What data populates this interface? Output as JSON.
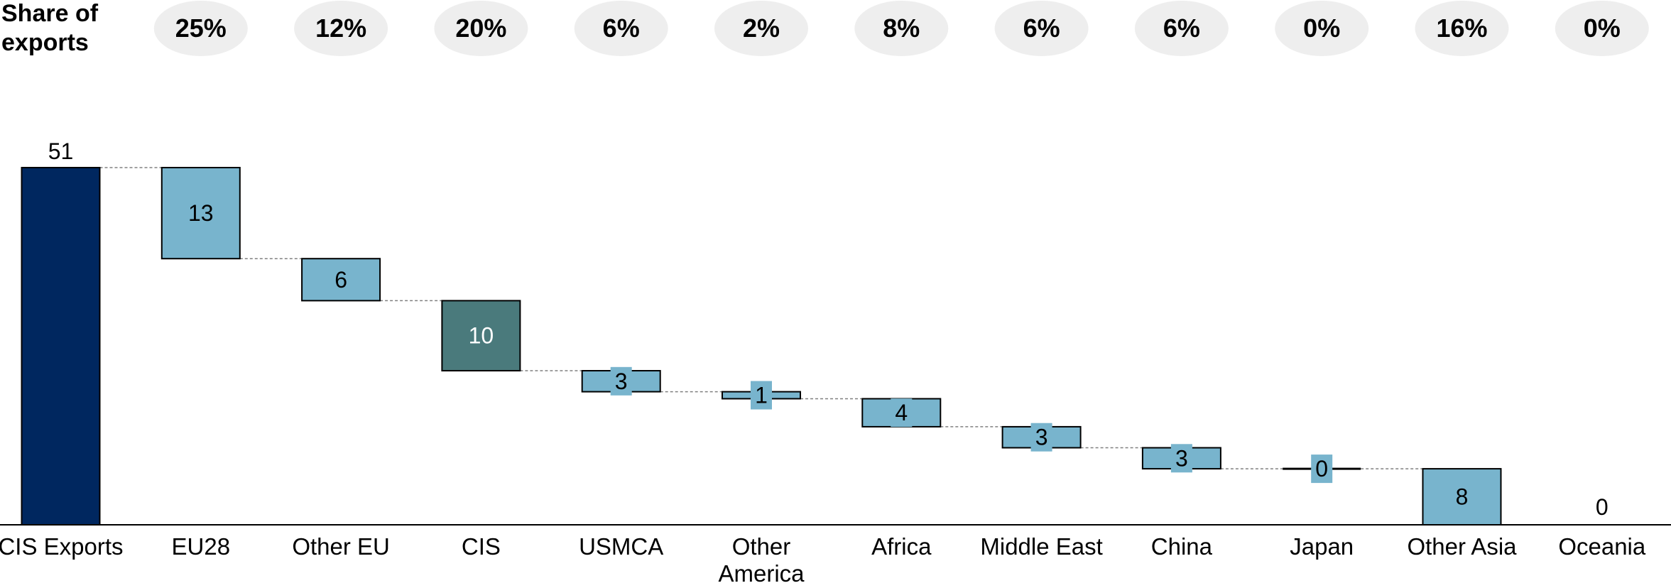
{
  "chart_data": {
    "type": "bar",
    "subtype": "waterfall",
    "share_header": [
      "Share of",
      "exports"
    ],
    "categories": [
      "CIS Exports",
      "EU28",
      "Other EU",
      "CIS",
      "USMCA",
      "Other America",
      "Africa",
      "Middle East",
      "China",
      "Japan",
      "Other Asia",
      "Oceania"
    ],
    "values": [
      51,
      13,
      6,
      10,
      3,
      1,
      4,
      3,
      3,
      0,
      8,
      0
    ],
    "value_labels": [
      "51",
      "13",
      "6",
      "10",
      "3",
      "1",
      "4",
      "3",
      "3",
      "0",
      "8",
      "0"
    ],
    "shares": [
      "25%",
      "12%",
      "20%",
      "6%",
      "2%",
      "8%",
      "6%",
      "6%",
      "0%",
      "16%",
      "0%"
    ],
    "ylim": [
      0,
      51
    ],
    "grid": false,
    "legend": "none",
    "colors": {
      "total": "#00275F",
      "step": "#78B4CD",
      "highlight": "#4A7A7C",
      "share_bubble": "#EEEEEE",
      "connector": "#808080"
    }
  }
}
